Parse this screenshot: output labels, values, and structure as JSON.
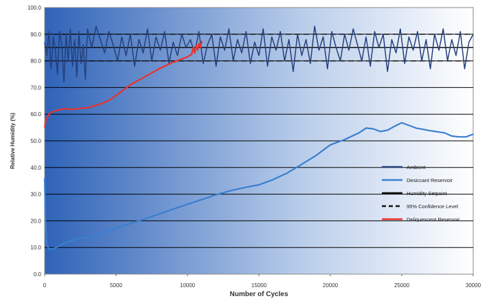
{
  "chart_data": {
    "type": "line",
    "title": "",
    "xlabel": "Number of Cycles",
    "ylabel": "Relative Humidity (%)",
    "xlim": [
      0,
      30000
    ],
    "ylim": [
      0,
      100
    ],
    "x_ticks": [
      0,
      5000,
      10000,
      15000,
      20000,
      25000,
      30000
    ],
    "x_tick_labels": [
      "0",
      "5000",
      "10000",
      "15000",
      "20000",
      "25000",
      "30000"
    ],
    "y_ticks": [
      0,
      10,
      20,
      30,
      40,
      50,
      60,
      70,
      80,
      90,
      100
    ],
    "y_tick_labels": [
      "0.0",
      "10.0",
      "20.0",
      "30.0",
      "40.0",
      "50.0",
      "60.0",
      "70.0",
      "80.0",
      "90.0",
      "100.0"
    ],
    "grid": "horizontal",
    "legend_position": "right",
    "background_gradient": [
      "#2f63b8",
      "#ffffff"
    ],
    "series": [
      {
        "name": "Ambient",
        "color": "#243f7a",
        "style": "solid",
        "points": [
          [
            0,
            87
          ],
          [
            150,
            82
          ],
          [
            300,
            91
          ],
          [
            450,
            77
          ],
          [
            600,
            89
          ],
          [
            750,
            84
          ],
          [
            900,
            75
          ],
          [
            1050,
            91
          ],
          [
            1200,
            86
          ],
          [
            1350,
            72
          ],
          [
            1500,
            90
          ],
          [
            1650,
            80
          ],
          [
            1800,
            92
          ],
          [
            1950,
            78
          ],
          [
            2100,
            88
          ],
          [
            2250,
            74
          ],
          [
            2400,
            91
          ],
          [
            2550,
            79
          ],
          [
            2700,
            86
          ],
          [
            2850,
            73
          ],
          [
            3000,
            92
          ],
          [
            3300,
            85
          ],
          [
            3600,
            93
          ],
          [
            3900,
            88
          ],
          [
            4200,
            83
          ],
          [
            4500,
            91
          ],
          [
            4800,
            86
          ],
          [
            5100,
            80
          ],
          [
            5400,
            89
          ],
          [
            5700,
            82
          ],
          [
            6000,
            90
          ],
          [
            6300,
            78
          ],
          [
            6600,
            88
          ],
          [
            6900,
            83
          ],
          [
            7200,
            92
          ],
          [
            7500,
            80
          ],
          [
            7800,
            89
          ],
          [
            8100,
            84
          ],
          [
            8400,
            91
          ],
          [
            8700,
            79
          ],
          [
            9000,
            87
          ],
          [
            9300,
            82
          ],
          [
            9600,
            90
          ],
          [
            9900,
            85
          ],
          [
            10200,
            88
          ],
          [
            10500,
            83
          ],
          [
            10800,
            91
          ],
          [
            11100,
            79
          ],
          [
            11400,
            86
          ],
          [
            11700,
            90
          ],
          [
            12000,
            78
          ],
          [
            12300,
            89
          ],
          [
            12600,
            84
          ],
          [
            12900,
            92
          ],
          [
            13200,
            80
          ],
          [
            13500,
            88
          ],
          [
            13800,
            83
          ],
          [
            14100,
            91
          ],
          [
            14400,
            79
          ],
          [
            14700,
            87
          ],
          [
            15000,
            82
          ],
          [
            15300,
            92
          ],
          [
            15600,
            78
          ],
          [
            15900,
            89
          ],
          [
            16200,
            84
          ],
          [
            16500,
            91
          ],
          [
            16800,
            80
          ],
          [
            17100,
            88
          ],
          [
            17400,
            76
          ],
          [
            17700,
            90
          ],
          [
            18000,
            82
          ],
          [
            18300,
            88
          ],
          [
            18600,
            79
          ],
          [
            18900,
            93
          ],
          [
            19200,
            84
          ],
          [
            19500,
            89
          ],
          [
            19800,
            77
          ],
          [
            20100,
            91
          ],
          [
            20400,
            85
          ],
          [
            20700,
            80
          ],
          [
            21000,
            90
          ],
          [
            21300,
            84
          ],
          [
            21600,
            92
          ],
          [
            21900,
            86
          ],
          [
            22200,
            80
          ],
          [
            22500,
            89
          ],
          [
            22800,
            78
          ],
          [
            23100,
            91
          ],
          [
            23400,
            85
          ],
          [
            23700,
            90
          ],
          [
            24000,
            76
          ],
          [
            24300,
            88
          ],
          [
            24600,
            83
          ],
          [
            24900,
            92
          ],
          [
            25200,
            79
          ],
          [
            25500,
            89
          ],
          [
            25800,
            84
          ],
          [
            26100,
            91
          ],
          [
            26400,
            80
          ],
          [
            26700,
            88
          ],
          [
            27000,
            77
          ],
          [
            27300,
            90
          ],
          [
            27600,
            84
          ],
          [
            27900,
            92
          ],
          [
            28200,
            80
          ],
          [
            28500,
            88
          ],
          [
            28800,
            82
          ],
          [
            29100,
            91
          ],
          [
            29400,
            77
          ],
          [
            29700,
            87
          ],
          [
            30000,
            90
          ]
        ]
      },
      {
        "name": "Desiccant Reservoir",
        "color": "#3a7fd0",
        "style": "solid",
        "points": [
          [
            0,
            36
          ],
          [
            50,
            22
          ],
          [
            150,
            11
          ],
          [
            300,
            9.5
          ],
          [
            600,
            9.5
          ],
          [
            1000,
            10.5
          ],
          [
            1500,
            11.8
          ],
          [
            2000,
            12.8
          ],
          [
            2500,
            13.6
          ],
          [
            3000,
            13.8
          ],
          [
            3500,
            14.5
          ],
          [
            4000,
            15.3
          ],
          [
            5000,
            17.2
          ],
          [
            6000,
            19.0
          ],
          [
            7000,
            20.7
          ],
          [
            8000,
            22.5
          ],
          [
            9000,
            24.4
          ],
          [
            10000,
            26.2
          ],
          [
            11000,
            28.0
          ],
          [
            12000,
            29.8
          ],
          [
            13000,
            31.3
          ],
          [
            14000,
            32.5
          ],
          [
            15000,
            33.5
          ],
          [
            16000,
            35.5
          ],
          [
            17000,
            38.0
          ],
          [
            18000,
            41.2
          ],
          [
            19000,
            44.5
          ],
          [
            20000,
            48.5
          ],
          [
            21000,
            50.5
          ],
          [
            22000,
            53.0
          ],
          [
            22500,
            54.8
          ],
          [
            23000,
            54.5
          ],
          [
            23500,
            53.5
          ],
          [
            24000,
            54.0
          ],
          [
            24500,
            55.5
          ],
          [
            25000,
            56.8
          ],
          [
            25500,
            55.8
          ],
          [
            26000,
            54.8
          ],
          [
            26500,
            54.3
          ],
          [
            27000,
            53.8
          ],
          [
            27500,
            53.4
          ],
          [
            28000,
            53.0
          ],
          [
            28500,
            51.8
          ],
          [
            29000,
            51.5
          ],
          [
            29500,
            51.5
          ],
          [
            30000,
            52.5
          ]
        ]
      },
      {
        "name": "Humidity Setpoint",
        "color": "#111111",
        "style": "solid",
        "points": [
          [
            0,
            85
          ],
          [
            30000,
            85
          ]
        ]
      },
      {
        "name": "95% Confidence Level",
        "color": "#111111",
        "style": "dashed",
        "points": [
          [
            0,
            80
          ],
          [
            30000,
            80
          ]
        ],
        "upper_points": [
          [
            0,
            90
          ],
          [
            30000,
            90
          ]
        ]
      },
      {
        "name": "Deliquescent Reservoir",
        "color": "#e8322c",
        "style": "solid",
        "points": [
          [
            0,
            55
          ],
          [
            100,
            58
          ],
          [
            300,
            60
          ],
          [
            600,
            61
          ],
          [
            1000,
            61.7
          ],
          [
            1500,
            62
          ],
          [
            2000,
            61.8
          ],
          [
            2500,
            62.2
          ],
          [
            3000,
            62.4
          ],
          [
            3500,
            63.2
          ],
          [
            4000,
            64.0
          ],
          [
            4500,
            65.2
          ],
          [
            5000,
            67.0
          ],
          [
            5500,
            69.0
          ],
          [
            6000,
            71.0
          ],
          [
            6500,
            72.5
          ],
          [
            7000,
            74.0
          ],
          [
            7500,
            75.5
          ],
          [
            8000,
            77.0
          ],
          [
            8500,
            78.3
          ],
          [
            9000,
            79.5
          ],
          [
            9500,
            80.5
          ],
          [
            10000,
            81.5
          ],
          [
            10300,
            82.5
          ],
          [
            10400,
            85.0
          ],
          [
            10500,
            83.0
          ],
          [
            10600,
            86.0
          ],
          [
            10700,
            84.0
          ],
          [
            10800,
            86.5
          ],
          [
            10900,
            85.0
          ],
          [
            11000,
            87.5
          ]
        ]
      }
    ]
  }
}
